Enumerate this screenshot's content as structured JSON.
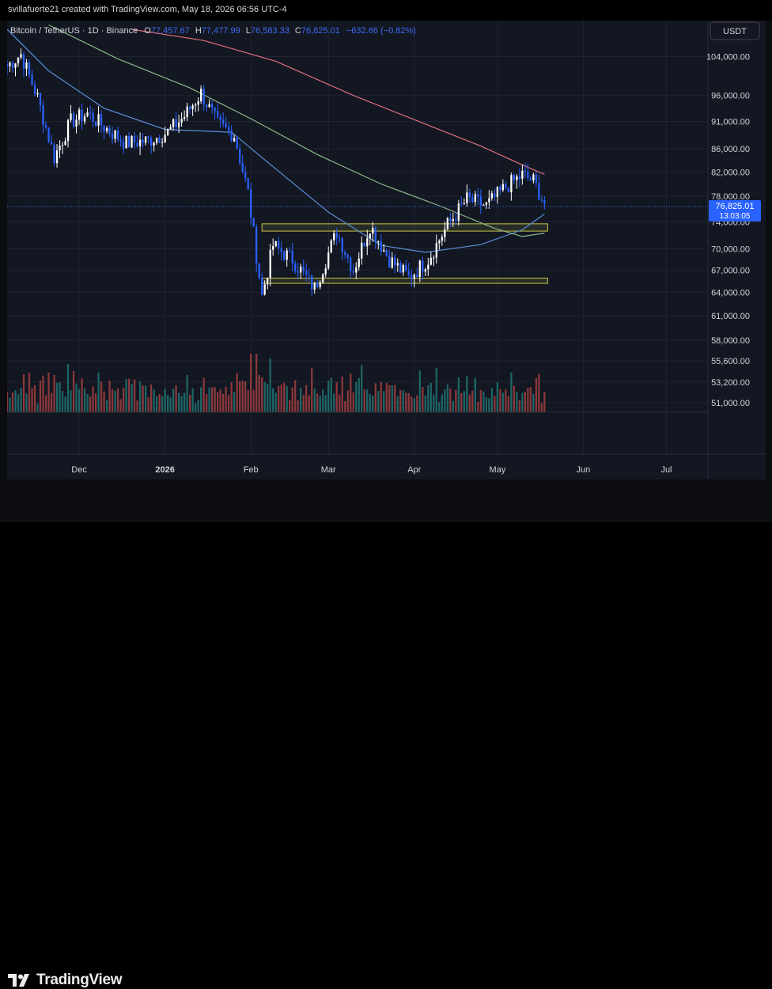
{
  "header": {
    "author_line": "svillafuerte21 created with TradingView.com, May 18, 2026 06:56 UTC-4"
  },
  "legend": {
    "symbol": "Bitcoin / TetherUS · 1D · Binance",
    "o_label": "O",
    "o_value": "77,457.67",
    "h_label": "H",
    "h_value": "77,477.99",
    "l_label": "L",
    "l_value": "76,583.33",
    "c_label": "C",
    "c_value": "76,825.01",
    "change": "−632.66 (−0.82%)"
  },
  "currency_badge": "USDT",
  "price_tag": {
    "price": "76,825.01",
    "countdown": "13:03:05"
  },
  "footer": {
    "brand": "TradingView"
  },
  "colors": {
    "background": "#131722",
    "up": "#ffffff",
    "down": "#2962ff",
    "vol_up": "#26a69a",
    "vol_down": "#ef5350",
    "ma_fast": "#5b8ed6",
    "ma_mid": "#8bb98a",
    "ma_slow": "#e0707b",
    "zone": "#c9c447"
  },
  "chart_data": {
    "type": "candlestick",
    "title": "Bitcoin / TetherUS · 1D · Binance",
    "y_scale": "log",
    "ylim": [
      50000,
      112000
    ],
    "y_ticks": [
      "104,000.00",
      "96,000.00",
      "91,000.00",
      "86,000.00",
      "82,000.00",
      "78,000.00",
      "74,000.00",
      "70,000.00",
      "67,000.00",
      "64,000.00",
      "61,000.00",
      "58,000.00",
      "55,600.00",
      "53,200.00",
      "51,000.00"
    ],
    "x_ticks": [
      "Dec",
      "2026",
      "Feb",
      "Mar",
      "Apr",
      "May",
      "Jun",
      "Jul"
    ],
    "x_range": [
      "2025-11-05",
      "2026-07-16"
    ],
    "last_date": "2026-05-18",
    "current_price": 76825.01,
    "zones": [
      {
        "low": 72600,
        "high": 73700,
        "from": "2026-02-05",
        "to": "2026-05-18"
      },
      {
        "low": 65200,
        "high": 65900,
        "from": "2026-02-05",
        "to": "2026-05-18"
      }
    ],
    "anchors": [
      {
        "date": "2025-11-05",
        "price": 102000
      },
      {
        "date": "2025-11-10",
        "price": 104500
      },
      {
        "date": "2025-11-16",
        "price": 95500
      },
      {
        "date": "2025-11-22",
        "price": 84500
      },
      {
        "date": "2025-11-28",
        "price": 91000
      },
      {
        "date": "2025-12-04",
        "price": 92500
      },
      {
        "date": "2025-12-10",
        "price": 90000
      },
      {
        "date": "2025-12-18",
        "price": 87000
      },
      {
        "date": "2025-12-26",
        "price": 87500
      },
      {
        "date": "2026-01-02",
        "price": 89000
      },
      {
        "date": "2026-01-08",
        "price": 92000
      },
      {
        "date": "2026-01-14",
        "price": 96500
      },
      {
        "date": "2026-01-20",
        "price": 90500
      },
      {
        "date": "2026-01-26",
        "price": 88500
      },
      {
        "date": "2026-01-31",
        "price": 78500
      },
      {
        "date": "2026-02-05",
        "price": 63500
      },
      {
        "date": "2026-02-09",
        "price": 70500
      },
      {
        "date": "2026-02-16",
        "price": 68500
      },
      {
        "date": "2026-02-24",
        "price": 64500
      },
      {
        "date": "2026-03-04",
        "price": 72500
      },
      {
        "date": "2026-03-10",
        "price": 67000
      },
      {
        "date": "2026-03-16",
        "price": 73500
      },
      {
        "date": "2026-03-23",
        "price": 68500
      },
      {
        "date": "2026-03-30",
        "price": 66000
      },
      {
        "date": "2026-04-06",
        "price": 68500
      },
      {
        "date": "2026-04-13",
        "price": 73500
      },
      {
        "date": "2026-04-20",
        "price": 77500
      },
      {
        "date": "2026-04-27",
        "price": 76500
      },
      {
        "date": "2026-05-04",
        "price": 79500
      },
      {
        "date": "2026-05-10",
        "price": 81500
      },
      {
        "date": "2026-05-14",
        "price": 80500
      },
      {
        "date": "2026-05-18",
        "price": 76825
      }
    ],
    "moving_averages": [
      {
        "color": "#5b8ed6",
        "points": [
          [
            "2025-11-05",
            110000
          ],
          [
            "2025-11-20",
            101000
          ],
          [
            "2025-12-10",
            93500
          ],
          [
            "2026-01-01",
            89500
          ],
          [
            "2026-01-25",
            89000
          ],
          [
            "2026-02-10",
            82500
          ],
          [
            "2026-03-01",
            75500
          ],
          [
            "2026-03-20",
            70500
          ],
          [
            "2026-04-05",
            69500
          ],
          [
            "2026-04-25",
            70600
          ],
          [
            "2026-05-10",
            72800
          ],
          [
            "2026-05-18",
            75200
          ]
        ]
      },
      {
        "color": "#8bb98a",
        "points": [
          [
            "2025-11-20",
            111000
          ],
          [
            "2025-12-15",
            103500
          ],
          [
            "2026-01-10",
            97500
          ],
          [
            "2026-02-01",
            91500
          ],
          [
            "2026-02-25",
            85000
          ],
          [
            "2026-03-20",
            80000
          ],
          [
            "2026-04-10",
            76500
          ],
          [
            "2026-04-30",
            73000
          ],
          [
            "2026-05-10",
            71800
          ],
          [
            "2026-05-18",
            72300
          ]
        ]
      },
      {
        "color": "#e0707b",
        "points": [
          [
            "2025-12-20",
            110000
          ],
          [
            "2026-01-15",
            107500
          ],
          [
            "2026-02-10",
            103000
          ],
          [
            "2026-03-10",
            96000
          ],
          [
            "2026-04-05",
            90500
          ],
          [
            "2026-04-25",
            86500
          ],
          [
            "2026-05-10",
            83200
          ],
          [
            "2026-05-18",
            81600
          ]
        ]
      }
    ]
  }
}
